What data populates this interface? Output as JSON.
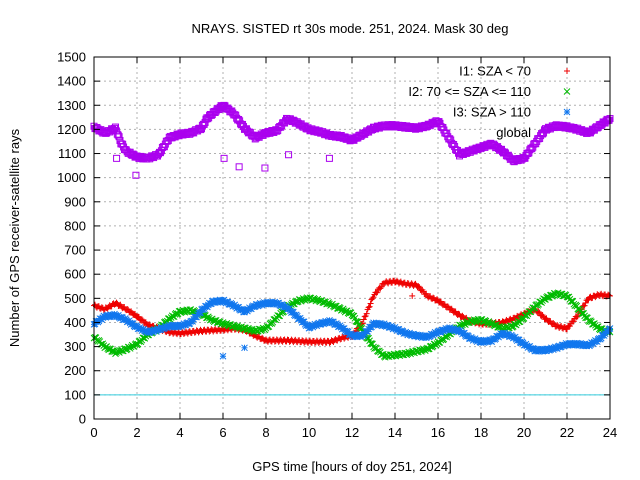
{
  "chart_data": {
    "type": "scatter",
    "title": "NRAYS. SISTED rt 30s mode. 251, 2024. Mask 30 deg",
    "xlabel": "GPS time [hours of doy 251, 2024]",
    "ylabel": "Number of GPS receiver-satellite rays",
    "xlim": [
      0,
      24
    ],
    "ylim": [
      0,
      1500
    ],
    "xticks": [
      0,
      2,
      4,
      6,
      8,
      10,
      12,
      14,
      16,
      18,
      20,
      22,
      24
    ],
    "yticks": [
      0,
      100,
      200,
      300,
      400,
      500,
      600,
      700,
      800,
      900,
      1000,
      1100,
      1200,
      1300,
      1400,
      1500
    ],
    "grid": true,
    "legend_position": "top-right",
    "reference_line": {
      "y": 100,
      "color": "#33ccdd"
    },
    "series": [
      {
        "name": "I1: SZA < 70",
        "marker": "+",
        "color": "#ee0000",
        "x": [
          0,
          0.5,
          1,
          1.5,
          2,
          2.5,
          3,
          3.5,
          4,
          5,
          6,
          6.5,
          7,
          7.5,
          8,
          9,
          10,
          10.5,
          11,
          11.5,
          12,
          12.5,
          13,
          13.5,
          14,
          14.5,
          15,
          15.5,
          16,
          16.5,
          17,
          17.5,
          18,
          18.5,
          19,
          19.5,
          20,
          20.5,
          21,
          21.5,
          22,
          22.5,
          23,
          23.5,
          24
        ],
        "y": [
          470,
          455,
          480,
          455,
          425,
          390,
          375,
          360,
          355,
          365,
          370,
          375,
          370,
          345,
          325,
          325,
          320,
          320,
          320,
          335,
          345,
          400,
          510,
          565,
          570,
          560,
          555,
          510,
          490,
          460,
          430,
          405,
          395,
          395,
          400,
          415,
          435,
          455,
          415,
          385,
          375,
          430,
          500,
          515,
          510
        ]
      },
      {
        "name": "I2: 70 <= SZA <= 110",
        "marker": "x",
        "color": "#00bb00",
        "x": [
          0,
          0.5,
          1,
          1.5,
          2,
          2.5,
          3,
          3.5,
          4,
          4.5,
          5,
          5.5,
          6,
          6.5,
          7,
          7.5,
          8,
          8.5,
          9,
          9.5,
          10,
          10.5,
          11,
          11.5,
          12,
          12.5,
          13,
          13.5,
          14,
          14.5,
          15,
          15.5,
          16,
          16.5,
          17,
          17.5,
          18,
          18.5,
          19,
          19.5,
          20,
          20.5,
          21,
          21.5,
          22,
          22.5,
          23,
          23.5,
          24
        ],
        "y": [
          340,
          300,
          275,
          290,
          310,
          350,
          375,
          415,
          445,
          450,
          435,
          410,
          395,
          385,
          375,
          365,
          375,
          420,
          465,
          490,
          500,
          490,
          475,
          455,
          435,
          365,
          300,
          260,
          265,
          270,
          280,
          290,
          315,
          350,
          385,
          405,
          410,
          395,
          375,
          385,
          420,
          465,
          500,
          520,
          510,
          460,
          410,
          375,
          360
        ]
      },
      {
        "name": "I3: SZA > 110",
        "marker": "*",
        "color": "#1177ee",
        "x": [
          0,
          0.5,
          1,
          1.5,
          2,
          2.5,
          3,
          3.5,
          4,
          4.5,
          5,
          5.5,
          6,
          6.5,
          7,
          7.5,
          8,
          8.5,
          9,
          9.5,
          10,
          10.5,
          11,
          11.5,
          12,
          12.5,
          13,
          13.5,
          14,
          14.5,
          15,
          15.5,
          16,
          16.5,
          17,
          17.5,
          18,
          18.5,
          19,
          19.5,
          20,
          20.5,
          21,
          21.5,
          22,
          22.5,
          23,
          23.5,
          24
        ],
        "y": [
          395,
          425,
          430,
          410,
          380,
          360,
          370,
          385,
          385,
          400,
          450,
          485,
          490,
          470,
          445,
          470,
          480,
          480,
          460,
          420,
          380,
          395,
          405,
          380,
          345,
          345,
          395,
          390,
          375,
          355,
          345,
          340,
          360,
          375,
          365,
          335,
          320,
          325,
          355,
          340,
          310,
          285,
          285,
          295,
          310,
          310,
          305,
          330,
          375
        ]
      },
      {
        "name": "global",
        "marker": "square",
        "color": "#aa00ee",
        "x": [
          0,
          0.5,
          1,
          1.25,
          1.5,
          2,
          2.5,
          3,
          3.5,
          4,
          4.5,
          5,
          5.25,
          5.5,
          6,
          6.5,
          7,
          7.5,
          8,
          8.5,
          9,
          9.5,
          10,
          10.5,
          11,
          11.5,
          12,
          12.5,
          13,
          13.5,
          14,
          14.5,
          15,
          15.5,
          16,
          16.5,
          17,
          17.5,
          18,
          18.5,
          19,
          19.5,
          20,
          20.5,
          21,
          21.5,
          22,
          22.5,
          23,
          23.5,
          24
        ],
        "y": [
          1210,
          1185,
          1205,
          1145,
          1110,
          1085,
          1080,
          1095,
          1165,
          1180,
          1185,
          1205,
          1245,
          1265,
          1300,
          1265,
          1205,
          1165,
          1185,
          1195,
          1245,
          1225,
          1200,
          1190,
          1175,
          1170,
          1155,
          1180,
          1205,
          1215,
          1215,
          1210,
          1205,
          1215,
          1235,
          1165,
          1095,
          1110,
          1125,
          1140,
          1110,
          1070,
          1080,
          1140,
          1200,
          1215,
          1210,
          1200,
          1185,
          1215,
          1245
        ]
      }
    ],
    "outliers": {
      "I1: SZA < 70": {
        "x": [
          14.8
        ],
        "y": [
          510
        ]
      },
      "I3: SZA > 110": {
        "x": [
          6,
          7
        ],
        "y": [
          260,
          295
        ]
      },
      "global": {
        "x": [
          1.05,
          1.95,
          6.05,
          6.75,
          7.95,
          9.05,
          10.95
        ],
        "y": [
          1080,
          1010,
          1080,
          1045,
          1040,
          1095,
          1080
        ]
      }
    }
  }
}
